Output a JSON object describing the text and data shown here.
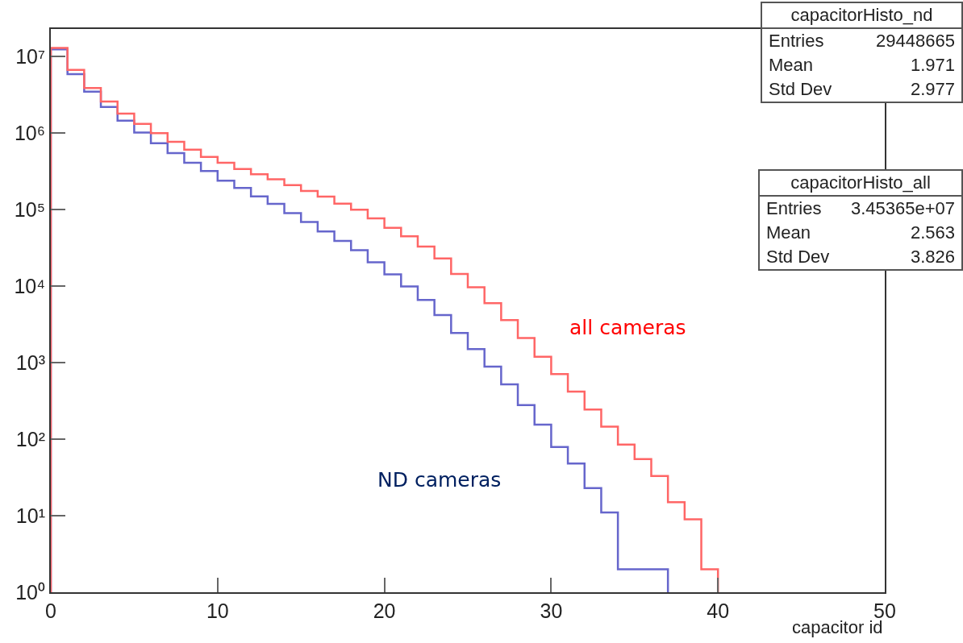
{
  "chart_data": {
    "type": "histogram",
    "xlabel": "capacitor id",
    "log": "y",
    "grid": false,
    "legend": false,
    "bins": [
      0,
      1,
      2,
      3,
      4,
      5,
      6,
      7,
      8,
      9,
      10,
      11,
      12,
      13,
      14,
      15,
      16,
      17,
      18,
      19,
      20,
      21,
      22,
      23,
      24,
      25,
      26,
      27,
      28,
      29,
      30,
      31,
      32,
      33,
      34,
      35,
      36,
      37,
      38,
      39,
      40
    ],
    "xlim": [
      0,
      50
    ],
    "xticks": [
      0,
      10,
      20,
      30,
      40,
      50
    ],
    "ylim": [
      1,
      23000000
    ],
    "yticks": [
      {
        "value": 1,
        "label": "10⁰"
      },
      {
        "value": 10,
        "label": "10¹"
      },
      {
        "value": 100,
        "label": "10²"
      },
      {
        "value": 1000,
        "label": "10³"
      },
      {
        "value": 10000,
        "label": "10⁴"
      },
      {
        "value": 100000,
        "label": "10⁵"
      },
      {
        "value": 1000000,
        "label": "10⁶"
      },
      {
        "value": 10000000,
        "label": "10⁷"
      }
    ],
    "series": [
      {
        "name": "ND cameras",
        "color": "#6666cc",
        "bins": [
          0,
          1,
          2,
          3,
          4,
          5,
          6,
          7,
          8,
          9,
          10,
          11,
          12,
          13,
          14,
          15,
          16,
          17,
          18,
          19,
          20,
          21,
          22,
          23,
          24,
          25,
          26,
          27,
          28,
          29,
          30,
          31,
          32,
          33,
          34,
          35,
          36,
          37
        ],
        "values": [
          12500000,
          5900000,
          3500000,
          2200000,
          1460000,
          1020000,
          740000,
          550000,
          410000,
          320000,
          240000,
          193000,
          149000,
          119000,
          90000,
          69000,
          52000,
          39000,
          29500,
          20500,
          14300,
          9900,
          6600,
          4200,
          2450,
          1510,
          890,
          520,
          280,
          155,
          79,
          48,
          23,
          11,
          2,
          2,
          2
        ]
      },
      {
        "name": "all cameras",
        "color": "#ff6666",
        "values": [
          13000000,
          6700000,
          3900000,
          2600000,
          1800000,
          1320000,
          1000000,
          770000,
          610000,
          490000,
          410000,
          340000,
          290000,
          250000,
          210000,
          176000,
          148000,
          120000,
          100000,
          77000,
          58000,
          45000,
          33000,
          23000,
          14500,
          9700,
          6000,
          3600,
          2100,
          1200,
          710,
          420,
          245,
          146,
          85,
          55,
          33,
          15,
          9,
          2
        ]
      }
    ],
    "annotations": [
      "capacitorHisto_nd\nEntries\t29448665\nMean\t1.971\nStd Dev\t2.977",
      "capacitorHisto_all\nEntries\t3.45365e+07\nMean\t2.563\nStd Dev\t3.826"
    ]
  }
}
